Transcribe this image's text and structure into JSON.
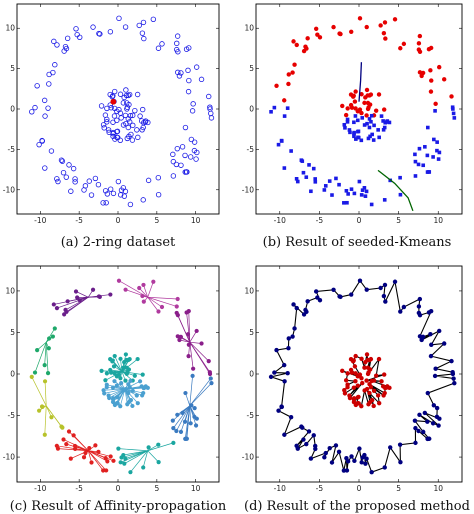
{
  "figure": {
    "captions": [
      "(a) 2-ring dataset",
      "(b) Result of seeded-Kmeans",
      "(c) Result of Affinity-propagation",
      "(d) Result of the proposed method"
    ]
  },
  "colors": {
    "ring_blue": "#1a1ae6",
    "red": "#e60000",
    "navy": "#000080",
    "green": "#006400",
    "cluster_palette": [
      "#8a1e8a",
      "#b03a9e",
      "#6a1e8a",
      "#1ea86a",
      "#b7c22a",
      "#e02020",
      "#1aa6a0",
      "#3a7ac0",
      "#4aa0d0",
      "#e0206a"
    ],
    "outer_proposed": "#000080",
    "inner_proposed": "#cc0000",
    "edges_proposed": "#000000"
  },
  "chart_data": [
    {
      "type": "scatter",
      "title": "",
      "xlim": [
        -13,
        13
      ],
      "ylim": [
        -13,
        13
      ],
      "xticks": [
        -10,
        -5,
        0,
        5,
        10
      ],
      "yticks": [
        10,
        5,
        0,
        -5,
        -10
      ],
      "tick_labels_x": [
        "-10",
        "-5",
        "0",
        "5",
        "10"
      ],
      "tick_labels_y": [
        "10",
        "5",
        "0",
        "-5",
        "-10"
      ],
      "series": [
        {
          "marker": "open-circle",
          "color": "#1a1ae6",
          "points": "outer_ring_and_inner_cluster"
        }
      ],
      "seeds": [
        {
          "x": -0.6,
          "y": 0.9,
          "color": "#e60000"
        }
      ]
    },
    {
      "type": "scatter",
      "title": "",
      "xlim": [
        -13,
        13
      ],
      "ylim": [
        -13,
        13
      ],
      "xticks": [
        -10,
        -5,
        0,
        5,
        10
      ],
      "yticks": [
        10,
        5,
        0,
        -5,
        -10
      ],
      "tick_labels_x": [
        "-10",
        "-5",
        "0",
        "5",
        "10"
      ],
      "tick_labels_y": [
        "10",
        "5",
        "0",
        "-5",
        "-10"
      ],
      "series": [
        {
          "marker": "filled-circle",
          "color": "#e60000",
          "region": "upper half"
        },
        {
          "marker": "filled-square",
          "color": "#1a1ae6",
          "region": "lower half"
        }
      ],
      "tracks": [
        {
          "color": "#000080",
          "points": [
            [
              0.0,
              0.9
            ],
            [
              0.2,
              3.5
            ],
            [
              0.3,
              5.8
            ]
          ]
        },
        {
          "color": "#006400",
          "points": [
            [
              2.4,
              -7.6
            ],
            [
              4.5,
              -9.2
            ],
            [
              6.2,
              -11.0
            ],
            [
              6.8,
              -12.6
            ]
          ]
        }
      ]
    },
    {
      "type": "scatter",
      "title": "",
      "xlim": [
        -13,
        13
      ],
      "ylim": [
        -13,
        13
      ],
      "xticks": [
        -10,
        -5,
        0,
        5,
        10
      ],
      "yticks": [
        10,
        5,
        0,
        -5,
        -10
      ],
      "tick_labels_x": [
        "-10",
        "-5",
        "0",
        "5",
        "10"
      ],
      "tick_labels_y": [
        "10",
        "5",
        "0",
        "-5",
        "-10"
      ],
      "clusters": 10,
      "marker": "filled-circle-with-exemplar-lines"
    },
    {
      "type": "scatter",
      "title": "",
      "xlim": [
        -13,
        13
      ],
      "ylim": [
        -13,
        13
      ],
      "xticks": [
        -10,
        -5,
        0,
        5,
        10
      ],
      "yticks": [
        10,
        5,
        0,
        -5,
        -10
      ],
      "tick_labels_x": [
        "-10",
        "-5",
        "0",
        "5",
        "10"
      ],
      "tick_labels_y": [
        "10",
        "5",
        "0",
        "-5",
        "-10"
      ],
      "series": [
        {
          "marker": "filled-circle",
          "color": "#000080",
          "region": "outer ring"
        },
        {
          "marker": "filled-circle",
          "color": "#cc0000",
          "region": "inner cluster"
        }
      ],
      "edges": "neighbor chain"
    }
  ]
}
